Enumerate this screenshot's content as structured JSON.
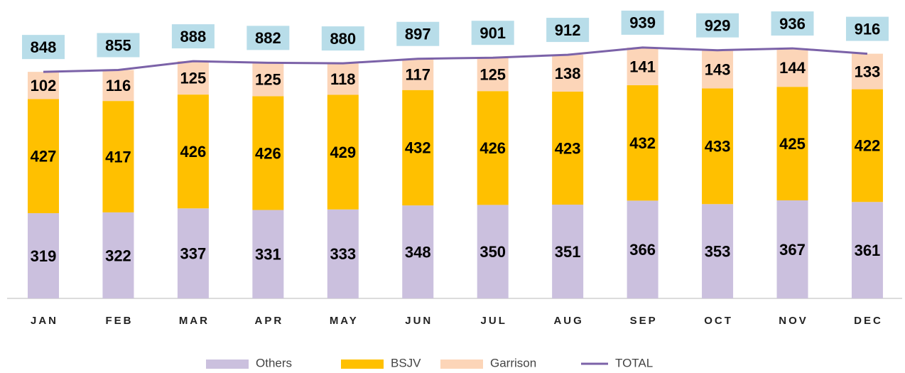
{
  "chart_data": {
    "type": "stacked-bar-line",
    "categories": [
      "JAN",
      "FEB",
      "MAR",
      "APR",
      "MAY",
      "JUN",
      "JUL",
      "AUG",
      "SEP",
      "OCT",
      "NOV",
      "DEC"
    ],
    "series": [
      {
        "name": "Others",
        "color": "#cbc0de",
        "values": [
          319,
          322,
          337,
          331,
          333,
          348,
          350,
          351,
          366,
          353,
          367,
          361
        ]
      },
      {
        "name": "BSJV",
        "color": "#ffc000",
        "values": [
          427,
          417,
          426,
          426,
          429,
          432,
          426,
          423,
          432,
          433,
          425,
          422
        ]
      },
      {
        "name": "Garrison",
        "color": "#fcd5b8",
        "values": [
          102,
          116,
          125,
          125,
          118,
          117,
          125,
          138,
          141,
          143,
          144,
          133
        ]
      },
      {
        "name": "TOTAL",
        "type": "line",
        "color": "#7b62a8",
        "label_color": "#b8dde9",
        "values": [
          848,
          855,
          888,
          882,
          880,
          897,
          901,
          912,
          939,
          929,
          936,
          916
        ]
      }
    ]
  }
}
